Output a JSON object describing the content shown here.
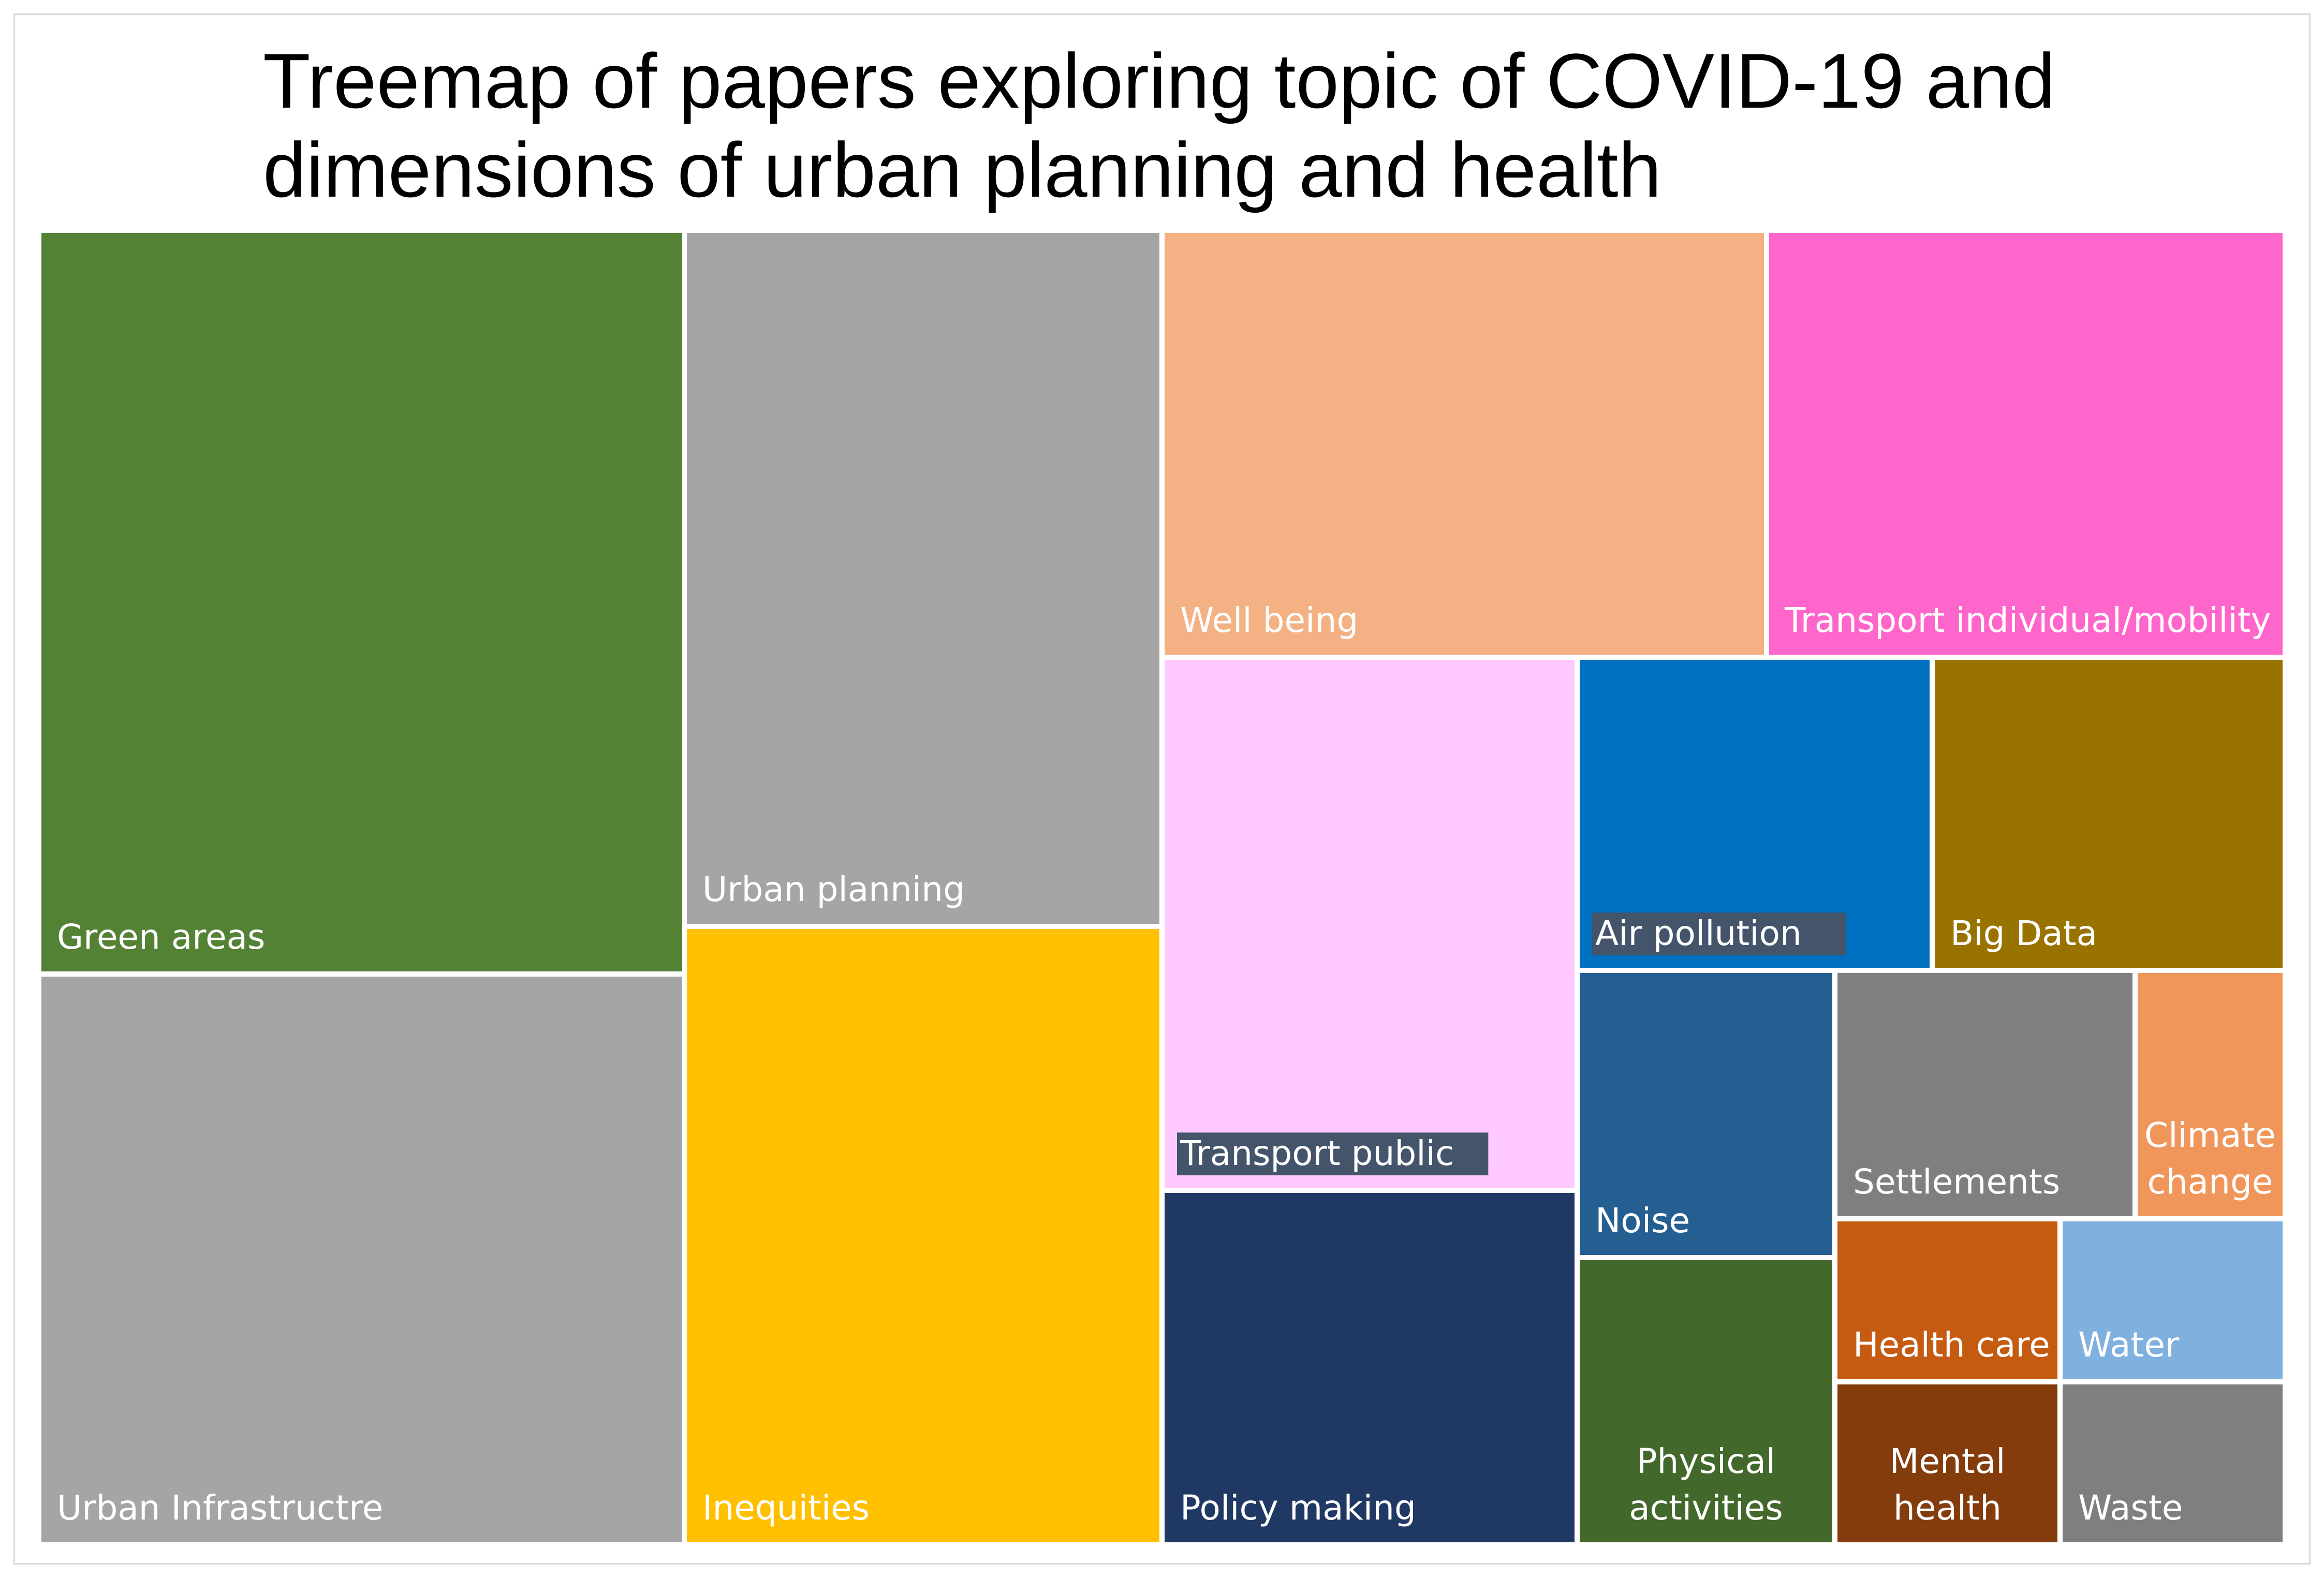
{
  "chart_data": {
    "type": "treemap",
    "title": "Treemap of papers exploring topic of COVID-19 and\ndimensions of urban planning and health",
    "items": [
      {
        "label": "Green areas",
        "lines": [
          "Green areas"
        ],
        "color": "#548235",
        "label_bg": null,
        "weight": 1.0
      },
      {
        "label": "Urban Infrastructre",
        "lines": [
          "Urban Infrastructre"
        ],
        "color": "#a5a5a5",
        "label_bg": null,
        "weight": 0.769
      },
      {
        "label": "Urban planning",
        "lines": [
          "Urban planning"
        ],
        "color": "#a5a5a5",
        "label_bg": null,
        "weight": 0.692
      },
      {
        "label": "Inequities",
        "lines": [
          "Inequities"
        ],
        "color": "#ffc000",
        "label_bg": null,
        "weight": 0.615
      },
      {
        "label": "Well being",
        "lines": [
          "Well being"
        ],
        "color": "#f4b183",
        "label_bg": null,
        "weight": 0.538
      },
      {
        "label": "Transport individual/mobility",
        "lines": [
          "Transport individual/mobility"
        ],
        "color": "#ff66cc",
        "label_bg": null,
        "weight": 0.462
      },
      {
        "label": "Transport public",
        "lines": [
          "Transport public"
        ],
        "color": "#ffc9ff",
        "label_bg": "#44546a",
        "weight": 0.385
      },
      {
        "label": "Policy making",
        "lines": [
          "Policy making"
        ],
        "color": "#203864",
        "label_bg": null,
        "weight": 0.308
      },
      {
        "label": "Air pollution",
        "lines": [
          "Air pollution"
        ],
        "color": "#0070c0",
        "label_bg": "#44546a",
        "weight": 0.231
      },
      {
        "label": "Big Data",
        "lines": [
          "Big Data"
        ],
        "color": "#997300",
        "label_bg": null,
        "weight": 0.231
      },
      {
        "label": "Noise",
        "lines": [
          "Noise"
        ],
        "color": "#255e91",
        "label_bg": null,
        "weight": 0.154
      },
      {
        "label": "Physical activities",
        "lines": [
          "Physical",
          "activities"
        ],
        "color": "#43682b",
        "label_bg": null,
        "weight": 0.154
      },
      {
        "label": "Settlements",
        "lines": [
          "Settlements"
        ],
        "color": "#7f7f7f",
        "label_bg": null,
        "weight": 0.154
      },
      {
        "label": "Climate change",
        "lines": [
          "Climate",
          "change"
        ],
        "color": "#f0965a",
        "label_bg": null,
        "weight": 0.077
      },
      {
        "label": "Health care",
        "lines": [
          "Health care"
        ],
        "color": "#c55a11",
        "label_bg": null,
        "weight": 0.077
      },
      {
        "label": "Water",
        "lines": [
          "Water"
        ],
        "color": "#7fb0de",
        "label_bg": null,
        "weight": 0.077
      },
      {
        "label": "Mental health",
        "lines": [
          "Mental",
          "health"
        ],
        "color": "#843c0c",
        "label_bg": null,
        "weight": 0.077
      },
      {
        "label": "Waste",
        "lines": [
          "Waste"
        ],
        "color": "#7f7f7f",
        "label_bg": null,
        "weight": 0.077
      }
    ]
  }
}
